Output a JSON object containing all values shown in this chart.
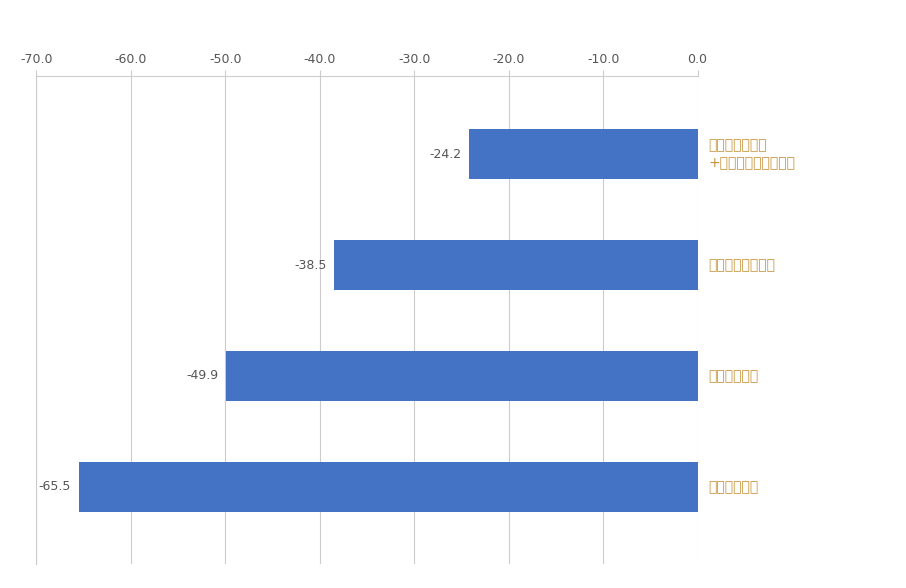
{
  "categories": [
    "全く知らない",
    "よく知らない",
    "聞いたことがある",
    "よく知っている\n+ある程度知っている"
  ],
  "values": [
    -65.5,
    -49.9,
    -38.5,
    -24.2
  ],
  "bar_color": "#4472C4",
  "label_color": "#C8943C",
  "value_color": "#555555",
  "xlim": [
    -70,
    0
  ],
  "xticks": [
    -70.0,
    -60.0,
    -50.0,
    -40.0,
    -30.0,
    -20.0,
    -10.0,
    0.0
  ],
  "xtick_labels": [
    "-70.0",
    "-60.0",
    "-50.0",
    "-40.0",
    "-30.0",
    "-20.0",
    "-10.0",
    "0.0"
  ],
  "background_color": "#ffffff",
  "grid_color": "#cccccc",
  "bar_height": 0.45,
  "font_size_ticks": 9,
  "font_size_labels": 10,
  "font_size_values": 9
}
